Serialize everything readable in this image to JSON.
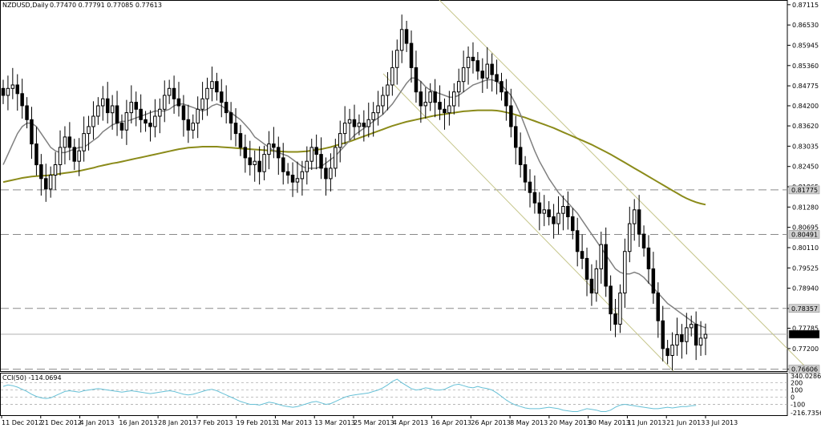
{
  "header": {
    "symbol": "NZDUSD,Daily",
    "ohlc": "0.77470 0.77791 0.77085 0.77613"
  },
  "indicator": {
    "label": "CCI(50) -114.0694"
  },
  "colors": {
    "grid_dash": "#8a8a8a",
    "ma_fast": "#808080",
    "ma_slow": "#8b8b1a",
    "channel": "#c5c58a",
    "cci_line": "#66c0d6",
    "candle": "#000000"
  },
  "chart_data": {
    "type": "candlestick",
    "title": "NZDUSD,Daily",
    "y_ticks": [
      "0.87115",
      "0.86530",
      "0.85945",
      "0.85360",
      "0.84775",
      "0.84200",
      "0.83620",
      "0.83035",
      "0.82450",
      "0.81865",
      "0.81280",
      "0.80695",
      "0.80110",
      "0.79525",
      "0.78940",
      "0.78357",
      "0.77785",
      "0.77200",
      "0.76605"
    ],
    "price_labels": [
      {
        "text": "0.81775",
        "value": 0.81775
      },
      {
        "text": "0.80491",
        "value": 0.80491
      },
      {
        "text": "0.78357",
        "value": 0.78357
      },
      {
        "text": "0.77613",
        "value": 0.77613
      },
      {
        "text": "0.76606",
        "value": 0.76606
      }
    ],
    "horizontal_lines": [
      0.81775,
      0.80491,
      0.78357,
      0.76606
    ],
    "current_price": 0.77613,
    "x_labels": [
      "11 Dec 2012",
      "21 Dec 2012",
      "4 Jan 2013",
      "16 Jan 2013",
      "28 Jan 2013",
      "7 Feb 2013",
      "19 Feb 2013",
      "1 Mar 2013",
      "13 Mar 2013",
      "25 Mar 2013",
      "4 Apr 2013",
      "16 Apr 2013",
      "26 Apr 2013",
      "8 May 2013",
      "20 May 2013",
      "30 May 2013",
      "11 Jun 2013",
      "21 Jun 2013",
      "3 Jul 2013"
    ],
    "ylim": [
      0.7655,
      0.8725
    ],
    "closes": [
      0.845,
      0.847,
      0.848,
      0.8455,
      0.842,
      0.838,
      0.831,
      0.825,
      0.821,
      0.818,
      0.822,
      0.825,
      0.83,
      0.833,
      0.83,
      0.826,
      0.829,
      0.834,
      0.836,
      0.839,
      0.842,
      0.844,
      0.84,
      0.842,
      0.837,
      0.835,
      0.84,
      0.843,
      0.841,
      0.838,
      0.837,
      0.836,
      0.839,
      0.841,
      0.845,
      0.847,
      0.844,
      0.842,
      0.838,
      0.835,
      0.837,
      0.841,
      0.844,
      0.847,
      0.849,
      0.846,
      0.843,
      0.84,
      0.837,
      0.834,
      0.83,
      0.827,
      0.825,
      0.826,
      0.823,
      0.828,
      0.831,
      0.83,
      0.827,
      0.823,
      0.822,
      0.82,
      0.821,
      0.823,
      0.826,
      0.83,
      0.828,
      0.824,
      0.821,
      0.824,
      0.83,
      0.834,
      0.837,
      0.838,
      0.836,
      0.837,
      0.836,
      0.838,
      0.84,
      0.842,
      0.845,
      0.848,
      0.853,
      0.858,
      0.864,
      0.86,
      0.853,
      0.846,
      0.842,
      0.843,
      0.846,
      0.843,
      0.841,
      0.84,
      0.842,
      0.846,
      0.849,
      0.853,
      0.856,
      0.855,
      0.852,
      0.85,
      0.854,
      0.851,
      0.849,
      0.846,
      0.842,
      0.836,
      0.83,
      0.825,
      0.82,
      0.817,
      0.814,
      0.811,
      0.812,
      0.81,
      0.808,
      0.811,
      0.813,
      0.81,
      0.806,
      0.8,
      0.798,
      0.792,
      0.788,
      0.795,
      0.802,
      0.79,
      0.782,
      0.779,
      0.788,
      0.8,
      0.808,
      0.812,
      0.805,
      0.801,
      0.795,
      0.788,
      0.78,
      0.772,
      0.77,
      0.773,
      0.776,
      0.774,
      0.778,
      0.779,
      0.773,
      0.775,
      0.7761
    ],
    "ma_fast": [
      0.825,
      0.828,
      0.831,
      0.834,
      0.836,
      0.837,
      0.837,
      0.836,
      0.834,
      0.832,
      0.83,
      0.829,
      0.8285,
      0.8285,
      0.829,
      0.8295,
      0.83,
      0.83,
      0.831,
      0.832,
      0.833,
      0.8345,
      0.8355,
      0.8365,
      0.837,
      0.8375,
      0.8375,
      0.838,
      0.8385,
      0.839,
      0.8395,
      0.84,
      0.8405,
      0.8405,
      0.8405,
      0.841,
      0.842,
      0.8425,
      0.8425,
      0.842,
      0.8415,
      0.841,
      0.8405,
      0.841,
      0.842,
      0.8425,
      0.842,
      0.841,
      0.84,
      0.839,
      0.838,
      0.8365,
      0.835,
      0.833,
      0.832,
      0.831,
      0.83,
      0.829,
      0.8285,
      0.828,
      0.8275,
      0.8265,
      0.8255,
      0.8245,
      0.824,
      0.824,
      0.824,
      0.8245,
      0.8255,
      0.8265,
      0.8275,
      0.829,
      0.8305,
      0.832,
      0.8335,
      0.8345,
      0.8355,
      0.8365,
      0.8375,
      0.8385,
      0.8395,
      0.841,
      0.8425,
      0.8445,
      0.8465,
      0.8485,
      0.85,
      0.85,
      0.849,
      0.8475,
      0.8465,
      0.846,
      0.8455,
      0.845,
      0.8445,
      0.8445,
      0.845,
      0.846,
      0.847,
      0.848,
      0.8485,
      0.849,
      0.8495,
      0.8495,
      0.849,
      0.848,
      0.8465,
      0.845,
      0.8425,
      0.8395,
      0.836,
      0.8325,
      0.829,
      0.826,
      0.8235,
      0.821,
      0.819,
      0.817,
      0.8155,
      0.814,
      0.8125,
      0.811,
      0.809,
      0.807,
      0.805,
      0.803,
      0.801,
      0.799,
      0.797,
      0.795,
      0.794,
      0.7935,
      0.7935,
      0.794,
      0.7935,
      0.7925,
      0.791,
      0.7895,
      0.788,
      0.7865,
      0.785,
      0.784,
      0.783,
      0.782,
      0.781,
      0.78,
      0.779,
      0.7785,
      0.778
    ],
    "ma_slow": [
      0.82,
      0.8203,
      0.8206,
      0.8209,
      0.8212,
      0.8214,
      0.8216,
      0.8217,
      0.8218,
      0.8219,
      0.822,
      0.8222,
      0.8224,
      0.8226,
      0.8228,
      0.823,
      0.8232,
      0.8235,
      0.8238,
      0.8241,
      0.8245,
      0.8248,
      0.8251,
      0.8254,
      0.8256,
      0.8259,
      0.8262,
      0.8265,
      0.8268,
      0.8271,
      0.8274,
      0.8277,
      0.828,
      0.8283,
      0.8286,
      0.8289,
      0.8292,
      0.8295,
      0.8297,
      0.8299,
      0.83,
      0.8301,
      0.8302,
      0.8302,
      0.8302,
      0.8302,
      0.8301,
      0.83,
      0.8299,
      0.8298,
      0.8297,
      0.8296,
      0.8295,
      0.8294,
      0.8293,
      0.8292,
      0.8291,
      0.829,
      0.8289,
      0.8288,
      0.8287,
      0.8287,
      0.8287,
      0.8288,
      0.8289,
      0.8291,
      0.8293,
      0.8295,
      0.8298,
      0.8301,
      0.8305,
      0.8309,
      0.8313,
      0.8317,
      0.8322,
      0.8327,
      0.8332,
      0.8337,
      0.8342,
      0.8347,
      0.8352,
      0.8357,
      0.8362,
      0.8366,
      0.837,
      0.8374,
      0.8377,
      0.838,
      0.8383,
      0.8386,
      0.8389,
      0.8392,
      0.8394,
      0.8396,
      0.8398,
      0.84,
      0.8402,
      0.8404,
      0.8405,
      0.8406,
      0.8407,
      0.8407,
      0.8407,
      0.8407,
      0.8406,
      0.8404,
      0.8401,
      0.8398,
      0.8394,
      0.839,
      0.8386,
      0.8381,
      0.8376,
      0.8371,
      0.8366,
      0.8361,
      0.8356,
      0.835,
      0.8344,
      0.8338,
      0.8332,
      0.8326,
      0.832,
      0.8314,
      0.8308,
      0.8301,
      0.8294,
      0.8287,
      0.828,
      0.8272,
      0.8264,
      0.8256,
      0.8248,
      0.824,
      0.8232,
      0.8224,
      0.8216,
      0.8208,
      0.82,
      0.8192,
      0.8184,
      0.8176,
      0.8168,
      0.816,
      0.8153,
      0.8147,
      0.8142,
      0.8138,
      0.8135
    ],
    "channel_lines": [
      {
        "start": 0.866,
        "end": 0.745
      },
      {
        "start": 0.89,
        "end": 0.77
      }
    ],
    "cci": {
      "name": "CCI(50)",
      "last": -114.0694,
      "ylim": [
        -250,
        340
      ],
      "y_ticks": [
        "340.0286",
        "200",
        "100",
        "0",
        "-100",
        "-216.7356"
      ],
      "levels": [
        200,
        100,
        0,
        -100
      ],
      "values": [
        150,
        170,
        160,
        140,
        110,
        80,
        40,
        10,
        -10,
        -20,
        -10,
        20,
        50,
        80,
        90,
        80,
        70,
        90,
        100,
        110,
        120,
        110,
        100,
        90,
        80,
        70,
        80,
        90,
        80,
        70,
        60,
        50,
        60,
        70,
        80,
        90,
        80,
        60,
        40,
        30,
        40,
        60,
        80,
        100,
        110,
        90,
        60,
        30,
        0,
        -30,
        -60,
        -80,
        -100,
        -100,
        -110,
        -90,
        -70,
        -80,
        -100,
        -120,
        -130,
        -140,
        -130,
        -110,
        -90,
        -70,
        -60,
        -80,
        -100,
        -90,
        -60,
        -30,
        0,
        20,
        30,
        40,
        50,
        60,
        80,
        100,
        130,
        170,
        220,
        250,
        200,
        160,
        120,
        100,
        110,
        130,
        120,
        100,
        100,
        110,
        140,
        170,
        180,
        160,
        140,
        130,
        150,
        130,
        120,
        100,
        60,
        10,
        -40,
        -80,
        -110,
        -130,
        -150,
        -160,
        -160,
        -160,
        -150,
        -140,
        -150,
        -160,
        -180,
        -190,
        -200,
        -200,
        -180,
        -160,
        -170,
        -180,
        -200,
        -200,
        -180,
        -140,
        -110,
        -100,
        -110,
        -120,
        -130,
        -140,
        -150,
        -160,
        -160,
        -150,
        -140,
        -150,
        -140,
        -130,
        -130,
        -120,
        -114
      ]
    }
  }
}
